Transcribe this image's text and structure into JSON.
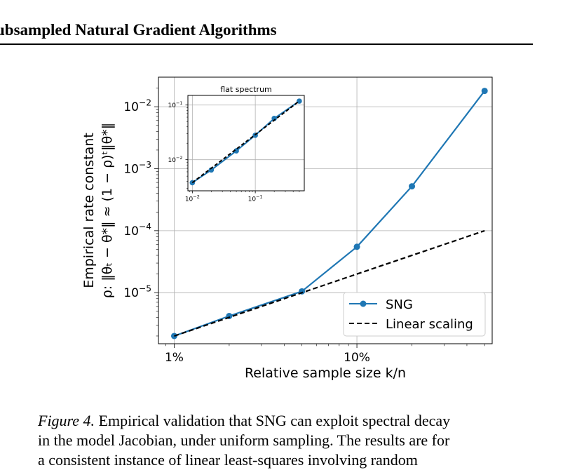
{
  "header": {
    "title": "ubsampled Natural Gradient Algorithms"
  },
  "chart_data": [
    {
      "type": "line",
      "title": "",
      "xscale": "log",
      "yscale": "log",
      "xlim": [
        0.0082,
        0.55
      ],
      "ylim": [
        1.5e-06,
        0.03
      ],
      "x_ticks": [
        {
          "value": 0.01,
          "label": "1%"
        },
        {
          "value": 0.1,
          "label": "10%"
        }
      ],
      "y_ticks": [
        {
          "value": 1e-05,
          "base": "10",
          "exp": "−5"
        },
        {
          "value": 0.0001,
          "base": "10",
          "exp": "−4"
        },
        {
          "value": 0.001,
          "base": "10",
          "exp": "−3"
        },
        {
          "value": 0.01,
          "base": "10",
          "exp": "−2"
        }
      ],
      "xlabel": "Relative sample size k/n",
      "ylabel_line1": "Empirical rate constant",
      "ylabel_line2": "ρ: ‖θₜ − θ*‖ ≈ (1 − ρ)ᵗ‖θ*‖",
      "grid": true,
      "legend": "lower-right",
      "series": [
        {
          "name": "SNG",
          "color": "#1f77b4",
          "style": "solid-marker",
          "x": [
            0.01,
            0.02,
            0.05,
            0.1,
            0.2,
            0.5
          ],
          "y": [
            2e-06,
            4.2e-06,
            1.05e-05,
            5.5e-05,
            0.00052,
            0.018
          ]
        },
        {
          "name": "Linear scaling",
          "color": "#000000",
          "style": "dashed",
          "x": [
            0.01,
            0.5
          ],
          "y": [
            2e-06,
            0.0001
          ]
        }
      ]
    },
    {
      "type": "line",
      "title": "flat spectrum",
      "xscale": "log",
      "yscale": "log",
      "xlim": [
        0.0085,
        0.6
      ],
      "ylim": [
        0.0027,
        0.15
      ],
      "x_ticks": [
        {
          "value": 0.01,
          "base": "10",
          "exp": "−2"
        },
        {
          "value": 0.1,
          "base": "10",
          "exp": "−1"
        }
      ],
      "y_ticks": [
        {
          "value": 0.01,
          "base": "10",
          "exp": "−2"
        },
        {
          "value": 0.1,
          "base": "10",
          "exp": "−1"
        }
      ],
      "grid": true,
      "series": [
        {
          "name": "",
          "color": "#1f77b4",
          "style": "solid-marker",
          "x": [
            0.01,
            0.02,
            0.05,
            0.1,
            0.2,
            0.5
          ],
          "y": [
            0.0038,
            0.0065,
            0.0145,
            0.028,
            0.057,
            0.118
          ]
        },
        {
          "name": "",
          "color": "#000000",
          "style": "dashed",
          "x": [
            0.01,
            0.5
          ],
          "y": [
            0.0038,
            0.118
          ]
        }
      ]
    }
  ],
  "caption": {
    "label": "Figure 4.",
    "line1": " Empirical validation that SNG can exploit spectral decay",
    "line2": "in the model Jacobian, under uniform sampling. The results are for",
    "line3": "a consistent instance of linear least-squares involving random"
  }
}
